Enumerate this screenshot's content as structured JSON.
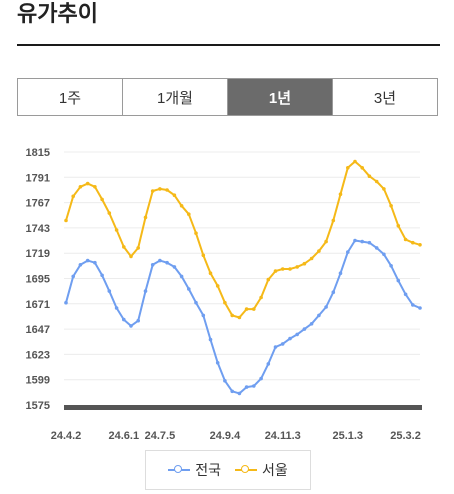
{
  "header": {
    "title": "유가추이"
  },
  "tabs": [
    {
      "label": "1주",
      "active": false
    },
    {
      "label": "1개월",
      "active": false
    },
    {
      "label": "1년",
      "active": true
    },
    {
      "label": "3년",
      "active": false
    }
  ],
  "colors": {
    "national": "#6f9ef0",
    "seoul": "#f5b918",
    "active_tab": "#6b6b6b"
  },
  "chart_data": {
    "type": "line",
    "ylim": [
      1575,
      1815
    ],
    "yticks": [
      "1815",
      "1791",
      "1767",
      "1743",
      "1719",
      "1695",
      "1671",
      "1647",
      "1623",
      "1599",
      "1575"
    ],
    "xticks": [
      {
        "label": "24.4.2",
        "index": 0
      },
      {
        "label": "24.6.1",
        "index": 8
      },
      {
        "label": "24.7.5",
        "index": 13
      },
      {
        "label": "24.9.4",
        "index": 22
      },
      {
        "label": "24.11.3",
        "index": 30
      },
      {
        "label": "25.1.3",
        "index": 39
      },
      {
        "label": "25.3.2",
        "index": 47
      }
    ],
    "series": [
      {
        "name": "전국",
        "color": "#6f9ef0",
        "values": [
          1672,
          1697,
          1708,
          1712,
          1710,
          1698,
          1683,
          1667,
          1656,
          1650,
          1655,
          1683,
          1708,
          1712,
          1710,
          1706,
          1697,
          1685,
          1672,
          1660,
          1637,
          1615,
          1598,
          1588,
          1586,
          1592,
          1593,
          1600,
          1614,
          1630,
          1633,
          1638,
          1642,
          1647,
          1652,
          1660,
          1668,
          1682,
          1700,
          1720,
          1731,
          1730,
          1729,
          1724,
          1718,
          1707,
          1693,
          1680,
          1670,
          1667
        ]
      },
      {
        "name": "서울",
        "color": "#f5b918",
        "values": [
          1750,
          1773,
          1782,
          1785,
          1782,
          1770,
          1757,
          1741,
          1725,
          1716,
          1724,
          1753,
          1778,
          1780,
          1779,
          1774,
          1764,
          1756,
          1738,
          1717,
          1700,
          1688,
          1672,
          1660,
          1658,
          1666,
          1666,
          1677,
          1694,
          1702,
          1704,
          1704,
          1706,
          1709,
          1714,
          1721,
          1730,
          1750,
          1775,
          1800,
          1806,
          1800,
          1792,
          1787,
          1780,
          1764,
          1745,
          1732,
          1729,
          1727
        ]
      }
    ],
    "legend_position": "bottom",
    "grid": true
  }
}
